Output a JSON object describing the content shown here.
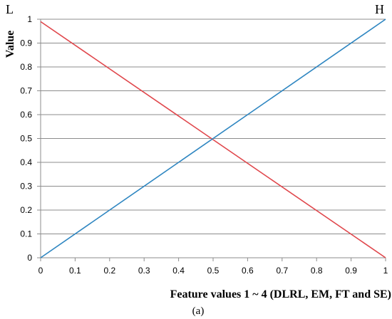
{
  "chart_data": {
    "type": "line",
    "xlabel": "Feature values 1 ~ 4 (DLRL, EM, FT and SE)",
    "ylabel": "Value",
    "xlim": [
      0,
      1
    ],
    "ylim": [
      0,
      1
    ],
    "x_ticks": [
      "0",
      "0.1",
      "0.2",
      "0.3",
      "0.4",
      "0.5",
      "0.6",
      "0.7",
      "0.8",
      "0.9",
      "1"
    ],
    "y_ticks": [
      "0",
      "0.1",
      "0.2",
      "0.3",
      "0.4",
      "0.5",
      "0.6",
      "0.7",
      "0.8",
      "0.9",
      "1"
    ],
    "grid": true,
    "series": [
      {
        "name": "L",
        "color": "#e0474c",
        "x": [
          0,
          1
        ],
        "y": [
          0.99,
          0
        ]
      },
      {
        "name": "H",
        "color": "#2e86c1",
        "x": [
          0,
          1
        ],
        "y": [
          0,
          1
        ]
      }
    ],
    "caption": "(a)"
  }
}
